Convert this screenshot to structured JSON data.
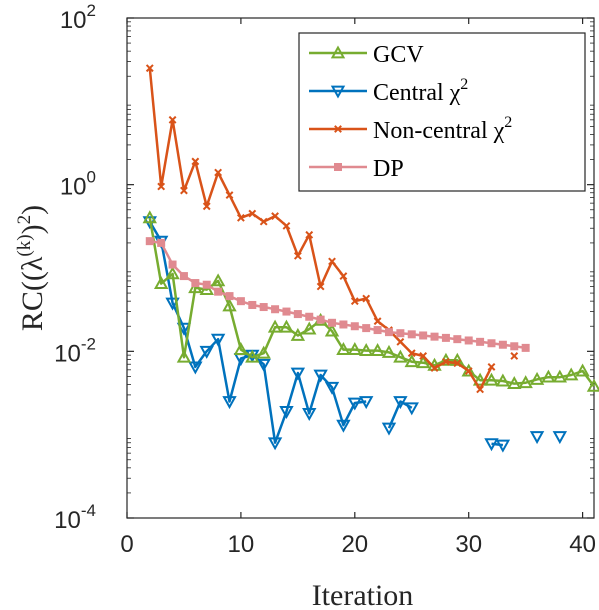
{
  "chart_data": {
    "type": "line",
    "xlabel": "Iteration",
    "ylabel": "RC((λ(k))2)",
    "xlim": [
      0,
      41
    ],
    "ylim": [
      0.0001,
      100
    ],
    "yscale": "log",
    "x_ticks": [
      0,
      10,
      20,
      30,
      40
    ],
    "y_ticks": [
      {
        "value": 0.0001,
        "base": "10",
        "exp": "-4"
      },
      {
        "value": 0.01,
        "base": "10",
        "exp": "-2"
      },
      {
        "value": 1,
        "base": "10",
        "exp": "0"
      },
      {
        "value": 100,
        "base": "10",
        "exp": "2"
      }
    ],
    "grid": false,
    "legend_position": "top-right",
    "series": [
      {
        "name": "GCV",
        "legend_label": "GCV",
        "color": "#77AC30",
        "marker": "triangle-up",
        "points": [
          [
            2,
            0.4
          ],
          [
            3,
            0.065
          ],
          [
            4,
            0.085
          ],
          [
            5,
            0.0085
          ],
          [
            6,
            0.058
          ],
          [
            7,
            0.055
          ],
          [
            8,
            0.07
          ],
          [
            9,
            0.035
          ],
          [
            10,
            0.0105
          ],
          [
            11,
            0.0085
          ],
          [
            12,
            0.0095
          ],
          [
            13,
            0.0195
          ],
          [
            14,
            0.0195
          ],
          [
            15,
            0.0155
          ],
          [
            16,
            0.0185
          ],
          [
            17,
            0.0235
          ],
          [
            18,
            0.0175
          ],
          [
            19,
            0.0105
          ],
          [
            20,
            0.0105
          ],
          [
            21,
            0.0102
          ],
          [
            22,
            0.0102
          ],
          [
            23,
            0.0097
          ],
          [
            24,
            0.0085
          ],
          [
            25,
            0.0075
          ],
          [
            26,
            0.0073
          ],
          [
            27,
            0.0068
          ],
          [
            28,
            0.0078
          ],
          [
            29,
            0.0078
          ],
          [
            30,
            0.0058
          ],
          [
            31,
            0.0045
          ],
          [
            32,
            0.0045
          ],
          [
            33,
            0.0044
          ],
          [
            34,
            0.0041
          ],
          [
            35,
            0.0042
          ],
          [
            36,
            0.0046
          ],
          [
            37,
            0.0049
          ],
          [
            38,
            0.0049
          ],
          [
            39,
            0.0052
          ],
          [
            40,
            0.0058
          ],
          [
            41,
            0.0038
          ]
        ]
      },
      {
        "name": "Central χ2",
        "legend_label": "Central χ",
        "legend_sup": "2",
        "color": "#0072BD",
        "marker": "triangle-down",
        "points": [
          [
            2,
            0.36
          ],
          [
            3,
            0.21
          ],
          [
            4,
            0.038
          ],
          [
            5,
            0.019
          ],
          [
            6,
            0.0065
          ],
          [
            7,
            0.01
          ],
          [
            8,
            0.014
          ],
          [
            9,
            0.0025
          ],
          [
            10,
            0.0082
          ],
          [
            11,
            0.009
          ],
          [
            12,
            0.007
          ],
          [
            13,
            0.0008
          ],
          [
            14,
            0.0019
          ],
          [
            15,
            0.0055
          ],
          [
            16,
            0.0018
          ],
          [
            17,
            0.0052
          ],
          [
            18,
            0.0037
          ],
          [
            19,
            0.0013
          ],
          [
            20,
            0.0024
          ],
          [
            21,
            0.0025
          ],
          null,
          [
            23,
            0.0012
          ],
          [
            24,
            0.0025
          ],
          [
            25,
            0.0021
          ],
          null,
          [
            32,
            0.00078
          ],
          [
            33,
            0.00075
          ],
          null,
          [
            36,
            0.00095
          ],
          null,
          [
            38,
            0.00095
          ]
        ]
      },
      {
        "name": "Non-central χ2",
        "legend_label": "Non-central χ",
        "legend_sup": "2",
        "color": "#D95319",
        "marker": "x",
        "points": [
          [
            2,
            25
          ],
          [
            3,
            0.95
          ],
          [
            4,
            6
          ],
          [
            5,
            0.85
          ],
          [
            6,
            1.9
          ],
          [
            7,
            0.55
          ],
          [
            8,
            1.4
          ],
          [
            9,
            0.75
          ],
          [
            10,
            0.4
          ],
          [
            11,
            0.45
          ],
          [
            12,
            0.36
          ],
          [
            13,
            0.42
          ],
          [
            14,
            0.32
          ],
          [
            15,
            0.14
          ],
          [
            16,
            0.25
          ],
          [
            17,
            0.06
          ],
          [
            18,
            0.12
          ],
          [
            19,
            0.08
          ],
          [
            20,
            0.04
          ],
          [
            21,
            0.043
          ],
          [
            22,
            0.023
          ],
          [
            23,
            0.018
          ],
          [
            24,
            0.013
          ],
          [
            25,
            0.0095
          ],
          [
            26,
            0.0088
          ],
          [
            27,
            0.0063
          ],
          [
            28,
            0.0075
          ],
          [
            29,
            0.0072
          ],
          [
            30,
            0.0058
          ],
          [
            31,
            0.0035
          ],
          [
            32,
            0.0065
          ],
          null,
          [
            34,
            0.0088
          ]
        ]
      },
      {
        "name": "DP",
        "legend_label": "DP",
        "color": "#E08A90",
        "marker": "square",
        "points": [
          [
            2,
            0.21
          ],
          [
            3,
            0.2
          ],
          [
            4,
            0.11
          ],
          [
            5,
            0.08
          ],
          [
            6,
            0.066
          ],
          [
            7,
            0.063
          ],
          [
            8,
            0.052
          ],
          [
            9,
            0.046
          ],
          [
            10,
            0.04
          ],
          [
            11,
            0.036
          ],
          [
            12,
            0.034
          ],
          [
            13,
            0.032
          ],
          [
            14,
            0.03
          ],
          [
            15,
            0.028
          ],
          [
            16,
            0.026
          ],
          [
            17,
            0.024
          ],
          [
            18,
            0.022
          ],
          [
            19,
            0.021
          ],
          [
            20,
            0.02
          ],
          [
            21,
            0.019
          ],
          [
            22,
            0.018
          ],
          [
            23,
            0.017
          ],
          [
            24,
            0.0165
          ],
          [
            25,
            0.016
          ],
          [
            26,
            0.0155
          ],
          [
            27,
            0.015
          ],
          [
            28,
            0.0145
          ],
          [
            29,
            0.014
          ],
          [
            30,
            0.0135
          ],
          [
            31,
            0.013
          ],
          [
            32,
            0.0125
          ],
          [
            33,
            0.012
          ],
          [
            34,
            0.0115
          ],
          [
            35,
            0.011
          ]
        ]
      }
    ]
  }
}
